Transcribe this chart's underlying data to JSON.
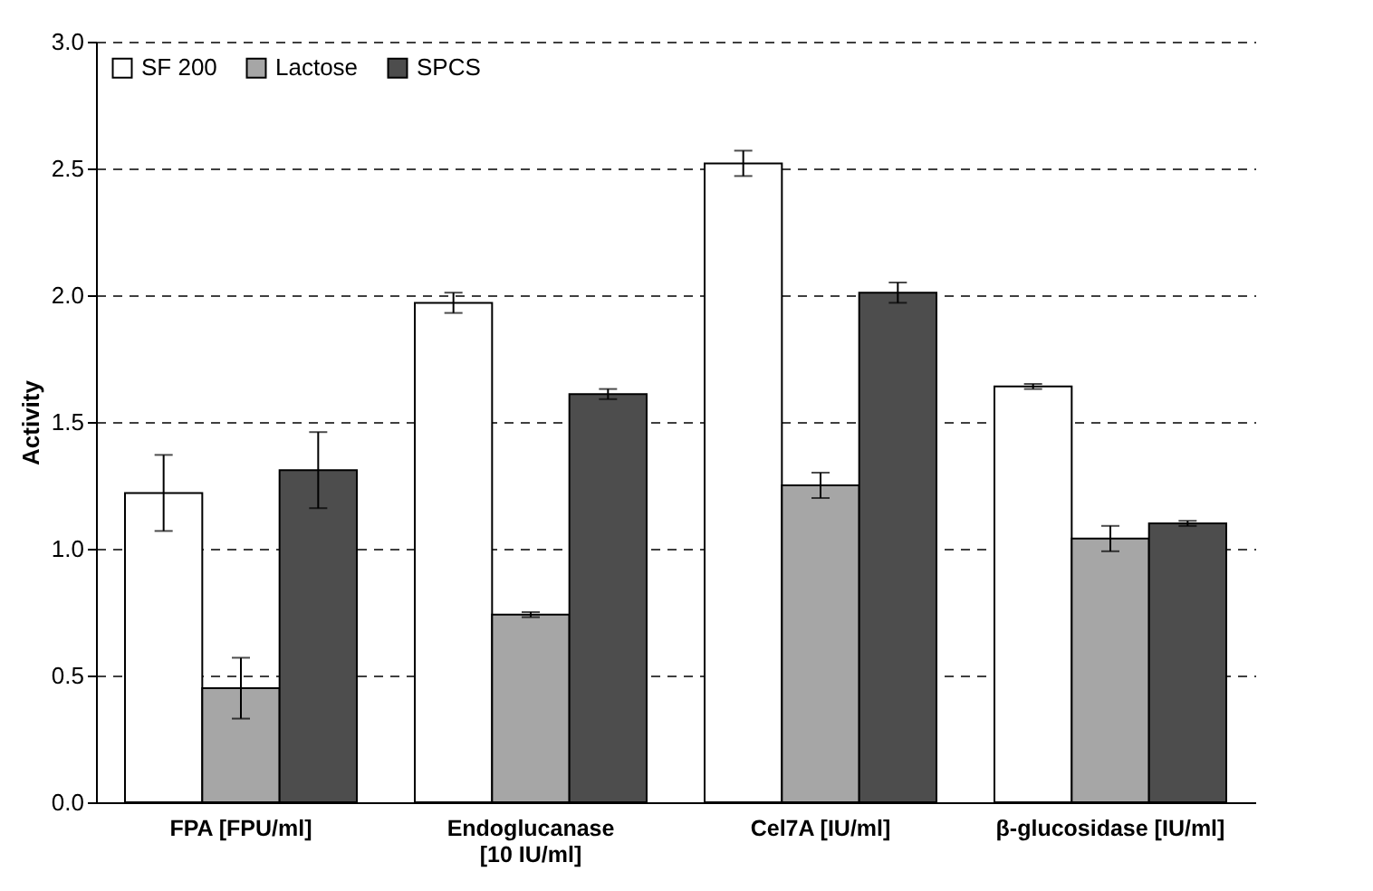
{
  "chart_data": {
    "type": "bar",
    "ylabel": "Activity",
    "categories": [
      "FPA [FPU/ml]",
      "Endoglucanase [10 IU/ml]",
      "Cel7A [IU/ml]",
      "β-glucosidase [IU/ml]"
    ],
    "series": [
      {
        "name": "SF 200",
        "color": "#ffffff",
        "values": [
          1.22,
          1.97,
          2.52,
          1.64
        ],
        "errors": [
          0.15,
          0.04,
          0.05,
          0.01
        ]
      },
      {
        "name": "Lactose",
        "color": "#a6a6a6",
        "values": [
          0.45,
          0.74,
          1.25,
          1.04
        ],
        "errors": [
          0.12,
          0.01,
          0.05,
          0.05
        ]
      },
      {
        "name": "SPCS",
        "color": "#4d4d4d",
        "values": [
          1.31,
          1.61,
          2.01,
          1.1
        ],
        "errors": [
          0.15,
          0.02,
          0.04,
          0.01
        ]
      }
    ],
    "ylim": [
      0,
      3
    ],
    "yticks": [
      {
        "value": 0,
        "label": "0.0"
      },
      {
        "value": 0.5,
        "label": "0.5"
      },
      {
        "value": 1,
        "label": "1.0"
      },
      {
        "value": 1.5,
        "label": "1.5"
      },
      {
        "value": 2,
        "label": "2.0"
      },
      {
        "value": 2.5,
        "label": "2.5"
      },
      {
        "value": 3,
        "label": "3.0"
      }
    ],
    "grid": "y",
    "legend": "top left"
  }
}
